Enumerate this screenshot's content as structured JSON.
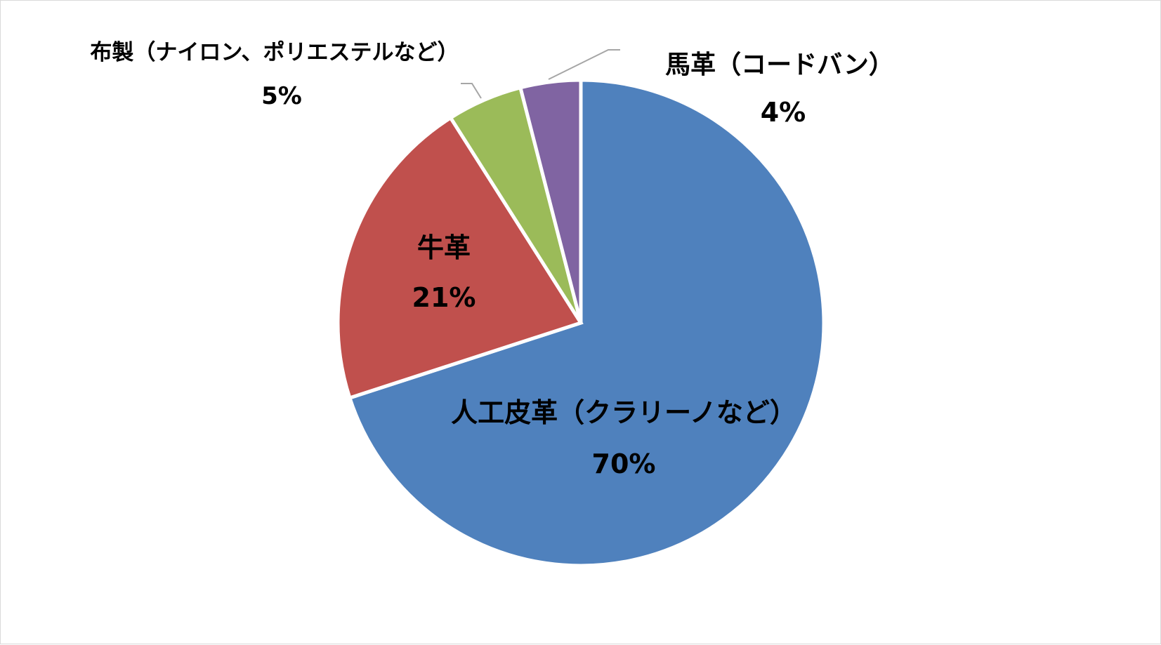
{
  "chart_data": {
    "type": "pie",
    "title": "",
    "start_angle_deg": 0,
    "direction": "clockwise",
    "slices": [
      {
        "label": "人工皮革（クラリーノなど）",
        "value": 70,
        "value_label": "70%",
        "color": "#4F81BD"
      },
      {
        "label": "牛革",
        "value": 21,
        "value_label": "21%",
        "color": "#C0504D"
      },
      {
        "label": "布製（ナイロン、ポリエステルなど）",
        "value": 5,
        "value_label": "5%",
        "color": "#9BBB59"
      },
      {
        "label": "馬革（コードバン）",
        "value": 4,
        "value_label": "4%",
        "color": "#8064A2"
      }
    ],
    "legend": "none",
    "data_labels": "category-and-percent"
  }
}
